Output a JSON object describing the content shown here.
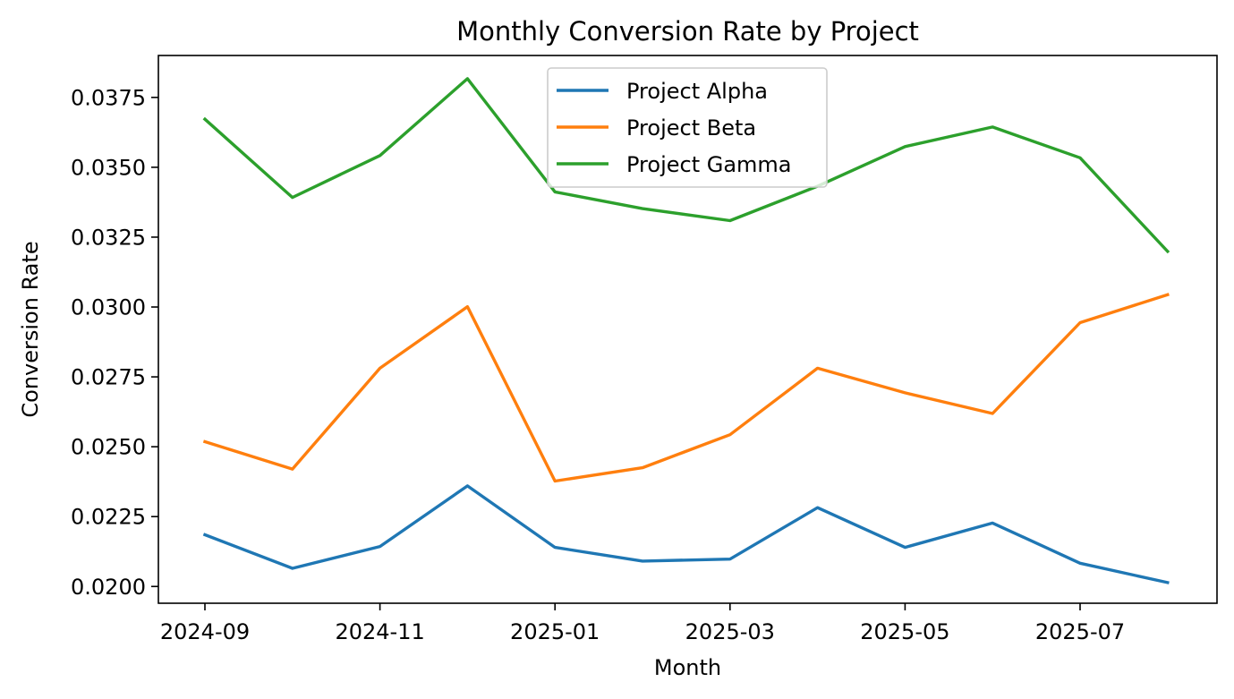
{
  "chart_data": {
    "type": "line",
    "title": "Monthly Conversion Rate by Project",
    "xlabel": "Month",
    "ylabel": "Conversion Rate",
    "x": [
      "2024-09",
      "2024-10",
      "2024-11",
      "2024-12",
      "2025-01",
      "2025-02",
      "2025-03",
      "2025-04",
      "2025-05",
      "2025-06",
      "2025-07",
      "2025-08"
    ],
    "x_tick_labels": [
      "2024-09",
      "2024-11",
      "2025-01",
      "2025-03",
      "2025-05",
      "2025-07"
    ],
    "y_tick_labels": [
      "0.0200",
      "0.0225",
      "0.0250",
      "0.0275",
      "0.0300",
      "0.0325",
      "0.0350",
      "0.0375"
    ],
    "ylim": [
      0.0194,
      0.039
    ],
    "grid": false,
    "legend_position": "top-center",
    "series": [
      {
        "name": "Project Alpha",
        "color": "#1f77b4",
        "values": [
          0.02185,
          0.02065,
          0.02143,
          0.0236,
          0.0214,
          0.02091,
          0.02098,
          0.02282,
          0.0214,
          0.02227,
          0.02083,
          0.02014
        ]
      },
      {
        "name": "Project Beta",
        "color": "#ff7f0e",
        "values": [
          0.02518,
          0.0242,
          0.02781,
          0.03001,
          0.02377,
          0.02425,
          0.02543,
          0.02781,
          0.02693,
          0.02619,
          0.02944,
          0.03044
        ]
      },
      {
        "name": "Project Gamma",
        "color": "#2ca02c",
        "values": [
          0.03672,
          0.03392,
          0.03542,
          0.03817,
          0.03412,
          0.03352,
          0.03309,
          0.03432,
          0.03574,
          0.03644,
          0.03534,
          0.03199
        ]
      }
    ]
  }
}
